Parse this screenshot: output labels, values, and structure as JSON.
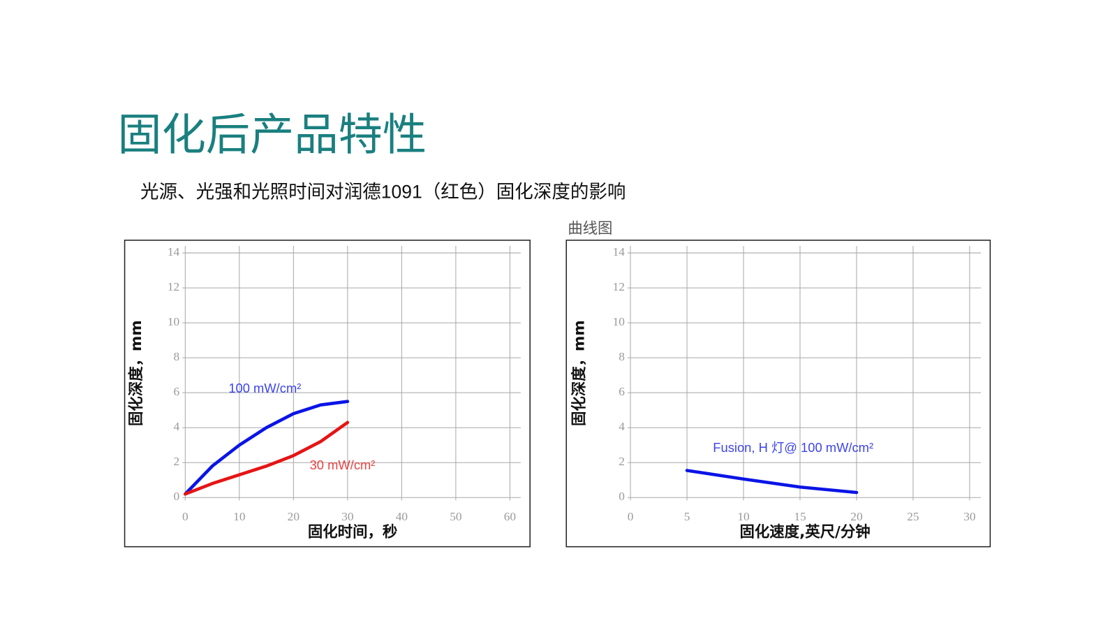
{
  "title": "固化后产品特性",
  "subtitle": "光源、光强和光照时间对润德1091（红色）固化深度的影响",
  "chart_data": [
    {
      "type": "line",
      "x_label": "固化时间，秒",
      "y_label": "固化深度，mm",
      "x": [
        0,
        5,
        10,
        15,
        20,
        25,
        30
      ],
      "series": [
        {
          "name": "100 mW/cm²",
          "color": "#0a14e6",
          "values": [
            0.2,
            1.8,
            3.0,
            4.0,
            4.8,
            5.3,
            5.5
          ]
        },
        {
          "name": "30 mW/cm²",
          "color": "#e61414",
          "values": [
            0.2,
            0.8,
            1.3,
            1.8,
            2.4,
            3.2,
            4.3
          ]
        }
      ],
      "xlim": [
        0,
        62
      ],
      "ylim": [
        0,
        14.4
      ],
      "xticks": [
        0,
        10,
        20,
        30,
        40,
        50,
        60
      ],
      "yticks": [
        0,
        2,
        4,
        6,
        8,
        10,
        12,
        14
      ],
      "grid": true
    },
    {
      "type": "line",
      "caption": "曲线图",
      "x_label": "固化速度,英尺/分钟",
      "y_label": "固化深度，mm",
      "x": [
        5,
        10,
        15,
        20
      ],
      "series": [
        {
          "name": "Fusion,  H 灯@ 100 mW/cm²",
          "color": "#0a14e6",
          "values": [
            1.55,
            1.06,
            0.6,
            0.29
          ]
        }
      ],
      "xlim": [
        0,
        31
      ],
      "ylim": [
        0,
        14.4
      ],
      "xticks": [
        0,
        5,
        10,
        15,
        20,
        25,
        30
      ],
      "yticks": [
        0,
        2,
        4,
        6,
        8,
        10,
        12,
        14
      ],
      "grid": true
    }
  ]
}
